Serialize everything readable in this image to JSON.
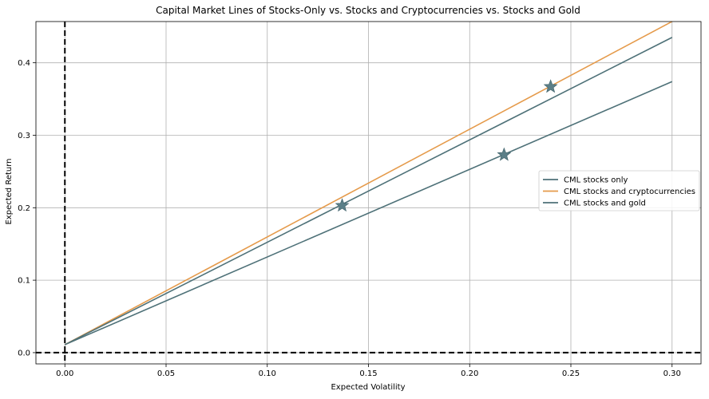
{
  "chart_data": {
    "type": "line",
    "title": "Capital Market Lines of Stocks-Only vs. Stocks and Cryptocurrencies vs. Stocks and Gold",
    "xlabel": "Expected Volatility",
    "ylabel": "Expected Return",
    "xlim": [
      -0.0143,
      0.3143
    ],
    "ylim": [
      -0.0155,
      0.4569
    ],
    "xticks": [
      0.0,
      0.05,
      0.1,
      0.15,
      0.2,
      0.25,
      0.3
    ],
    "xtick_labels": [
      "0.00",
      "0.05",
      "0.10",
      "0.15",
      "0.20",
      "0.25",
      "0.30"
    ],
    "yticks": [
      0.0,
      0.1,
      0.2,
      0.3,
      0.4
    ],
    "ytick_labels": [
      "0.0",
      "0.1",
      "0.2",
      "0.3",
      "0.4"
    ],
    "grid": true,
    "legend_position": "center-right",
    "reference_lines": [
      {
        "orientation": "vertical",
        "value": 0.0,
        "style": "dashed",
        "color": "#000000"
      },
      {
        "orientation": "horizontal",
        "value": 0.0,
        "style": "dashed",
        "color": "#000000"
      }
    ],
    "series": [
      {
        "name": "CML stocks only",
        "color": "#4e7178",
        "x": [
          0.0,
          0.3
        ],
        "y": [
          0.011,
          0.374
        ],
        "tangency_point": {
          "x": 0.217,
          "y": 0.273
        }
      },
      {
        "name": "CML stocks and cryptocurrencies",
        "color": "#e59a4a",
        "x": [
          0.0,
          0.3
        ],
        "y": [
          0.011,
          0.457
        ],
        "tangency_point": {
          "x": 0.24,
          "y": 0.367
        }
      },
      {
        "name": "CML stocks and gold",
        "color": "#4e7178",
        "x": [
          0.0,
          0.3
        ],
        "y": [
          0.011,
          0.435
        ],
        "tangency_point": {
          "x": 0.137,
          "y": 0.203
        }
      }
    ],
    "marker": {
      "shape": "star",
      "color": "#5b7f88"
    }
  }
}
